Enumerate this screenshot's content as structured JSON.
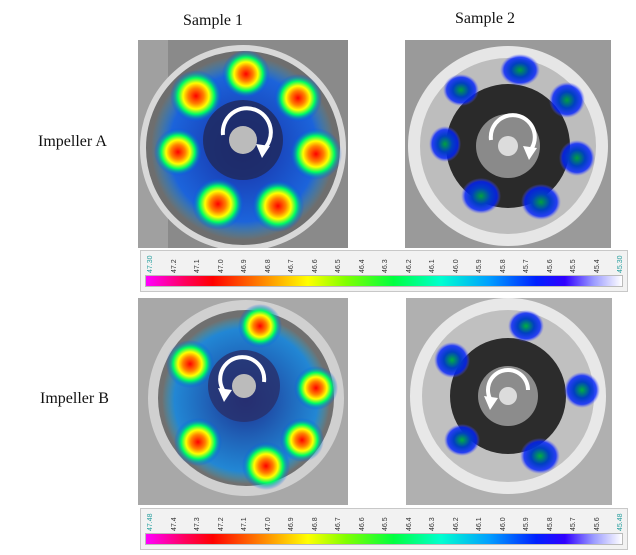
{
  "columns": [
    "Sample 1",
    "Sample 2"
  ],
  "rows": [
    "Impeller A",
    "Impeller B"
  ],
  "scales": [
    {
      "ticks": [
        "47.30",
        "47.2",
        "47.1",
        "47.0",
        "46.9",
        "46.8",
        "46.7",
        "46.6",
        "46.5",
        "46.4",
        "46.3",
        "46.2",
        "46.1",
        "46.0",
        "45.9",
        "45.8",
        "45.7",
        "45.6",
        "45.5",
        "45.4",
        "45.30"
      ]
    },
    {
      "ticks": [
        "47.48",
        "47.4",
        "47.3",
        "47.2",
        "47.1",
        "47.0",
        "46.9",
        "46.8",
        "46.7",
        "46.6",
        "46.5",
        "46.4",
        "46.3",
        "46.2",
        "46.1",
        "46.0",
        "45.9",
        "45.8",
        "45.7",
        "45.6",
        "45.48"
      ]
    }
  ],
  "rotation_arrows": [
    "clockwise",
    "clockwise",
    "counterclockwise",
    "counterclockwise"
  ],
  "colors": {
    "hot": "#ff0000",
    "warm": "#ffff00",
    "cool": "#00ff40",
    "cold": "#0020ff"
  }
}
